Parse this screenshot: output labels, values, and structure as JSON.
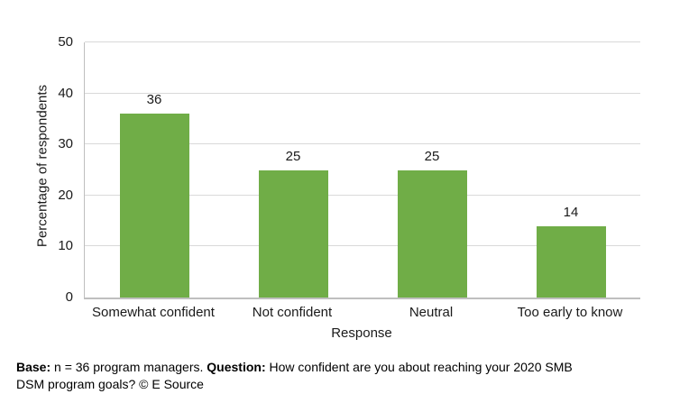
{
  "chart_data": {
    "type": "bar",
    "categories": [
      "Somewhat confident",
      "Not confident",
      "Neutral",
      "Too early to know"
    ],
    "values": [
      36,
      25,
      25,
      14
    ],
    "title": "",
    "xlabel": "Response",
    "ylabel": "Percentage of respondents",
    "ylim": [
      0,
      50
    ],
    "yticks": [
      0,
      10,
      20,
      30,
      40,
      50
    ],
    "grid": true,
    "legend_position": "none",
    "bar_color": "#70ad47",
    "grid_color": "#d9d9d9",
    "axis_color": "#bfbfbf"
  },
  "footnote": {
    "parts": [
      {
        "text": "Base:"
      },
      {
        "text": " n = 36 program managers. "
      },
      {
        "text": "Question:"
      },
      {
        "text": " How confident are you about reaching your 2020 SMB"
      },
      {
        "text": "DSM program goals? © E Source"
      }
    ]
  }
}
